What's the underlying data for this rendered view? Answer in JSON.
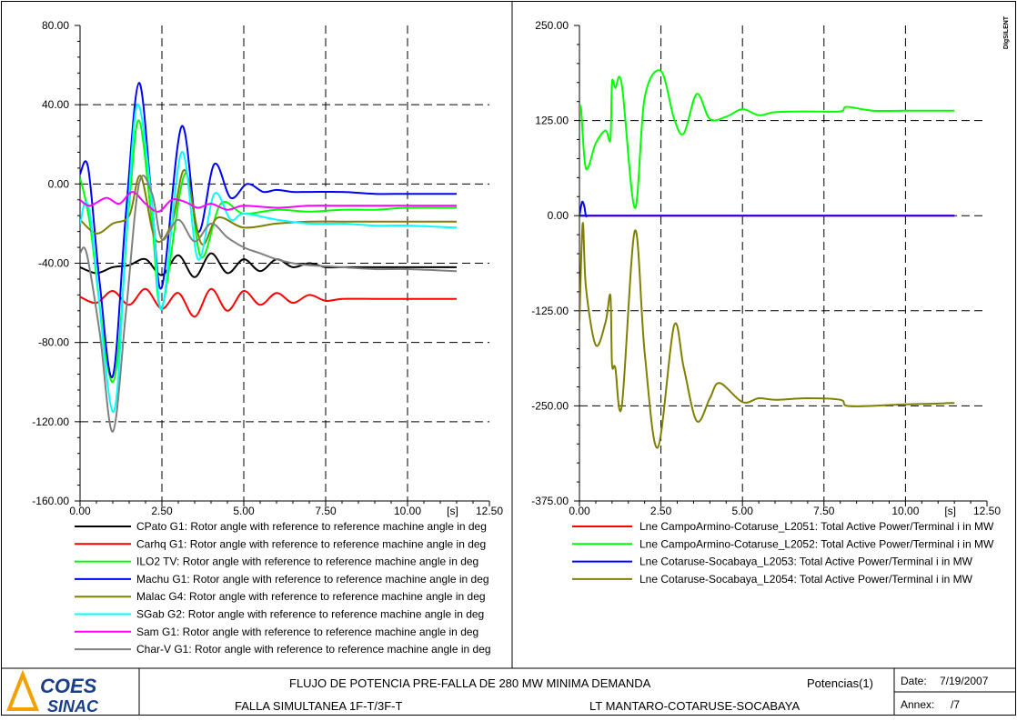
{
  "brand": {
    "top": "COES",
    "bottom": "SINAC",
    "color_top": "#1a3f8a",
    "color_bottom": "#1a3f8a",
    "triangle_color": "#f2a100"
  },
  "watermark": "DIgSILENT",
  "footer": {
    "title1": "FLUJO DE POTENCIA PRE-FALLA DE 280 MW MINIMA DEMANDA",
    "title2": "FALLA SIMULTANEA 1F-T/3F-T",
    "subtitle2": "LT MANTARO-COTARUSE-SOCABAYA",
    "page": "Potencias(1)",
    "date_label": "Date:",
    "date": "7/19/2007",
    "annex_label": "Annex:",
    "annex": "/7"
  },
  "chart_data": [
    {
      "type": "line",
      "x_unit_label": "[s]",
      "xlim": [
        0,
        12.5
      ],
      "ylim": [
        -160,
        80
      ],
      "x_ticks": [
        "0.00",
        "2.50",
        "5.00",
        "7.50",
        "10.00",
        "12.50"
      ],
      "y_ticks": [
        "80.00",
        "40.00",
        "0.00",
        "-40.00",
        "-80.00",
        "-120.00",
        "-160.00"
      ],
      "grid": true,
      "legend_position": "bottom",
      "series": [
        {
          "name": "CPato G1: Rotor angle with reference to reference machine angle in deg",
          "color": "#000000",
          "x": [
            0,
            0.5,
            1.0,
            1.5,
            2.0,
            2.5,
            3.0,
            3.5,
            4.0,
            4.5,
            5.0,
            5.5,
            6.0,
            6.5,
            7.0,
            7.5,
            8.0,
            9.0,
            10.0,
            11.0,
            11.5
          ],
          "y": [
            -42,
            -45,
            -42,
            -41,
            -38,
            -46,
            -36,
            -47,
            -35,
            -45,
            -38,
            -44,
            -38,
            -42,
            -40,
            -42,
            -42,
            -42,
            -42,
            -42,
            -42
          ]
        },
        {
          "name": "Carhq G1: Rotor angle with reference to reference machine angle in deg",
          "color": "#ff0000",
          "x": [
            0,
            0.5,
            1.0,
            1.5,
            2.0,
            2.5,
            3.0,
            3.5,
            4.0,
            4.5,
            5.0,
            5.5,
            6.0,
            6.5,
            7.0,
            7.5,
            8.0,
            9.0,
            10.0,
            11.0,
            11.5
          ],
          "y": [
            -57,
            -60,
            -54,
            -61,
            -53,
            -63,
            -55,
            -67,
            -53,
            -64,
            -54,
            -61,
            -55,
            -60,
            -56,
            -59,
            -58,
            -58,
            -58,
            -58,
            -58
          ]
        },
        {
          "name": "ILO2 TV: Rotor angle with reference to reference machine angle in deg",
          "color": "#00ff00",
          "x": [
            0,
            0.3,
            1.0,
            1.5,
            1.8,
            2.2,
            2.5,
            3.2,
            3.7,
            4.3,
            5.0,
            6.0,
            7.0,
            8.0,
            9.0,
            10.0,
            11.5
          ],
          "y": [
            3,
            -20,
            -100,
            -10,
            32,
            -20,
            -62,
            5,
            -37,
            -10,
            -15,
            -13,
            -14,
            -13,
            -13,
            -12,
            -12
          ]
        },
        {
          "name": "Machu G1: Rotor angle with reference to reference machine angle in deg",
          "color": "#0000ff",
          "x": [
            0,
            0.25,
            0.6,
            1.0,
            1.4,
            1.8,
            2.2,
            2.5,
            3.1,
            3.6,
            4.1,
            4.6,
            5.1,
            5.6,
            6.0,
            6.5,
            7.0,
            8.0,
            9.0,
            10.0,
            11.5
          ],
          "y": [
            5,
            8,
            -50,
            -97,
            -15,
            51,
            -10,
            -52,
            29,
            -24,
            10,
            -7,
            0,
            -4,
            -3,
            -4,
            -4,
            -4,
            -5,
            -5,
            -5
          ]
        },
        {
          "name": "Malac G4: Rotor angle with reference to reference machine angle in deg",
          "color": "#808000",
          "x": [
            0,
            0.5,
            1.0,
            1.5,
            1.85,
            2.3,
            2.8,
            3.2,
            3.7,
            4.2,
            5.0,
            6.0,
            7.0,
            8.0,
            9.0,
            10.0,
            11.5
          ],
          "y": [
            -18,
            -25,
            -20,
            -16,
            4,
            -28,
            -20,
            7,
            -30,
            -17,
            -22,
            -20,
            -19,
            -19,
            -19,
            -19,
            -19
          ]
        },
        {
          "name": "SGab G2: Rotor angle with reference to reference machine angle in deg",
          "color": "#00ffff",
          "x": [
            0,
            0.3,
            1.0,
            1.4,
            1.75,
            2.2,
            2.5,
            3.1,
            3.6,
            4.1,
            4.6,
            5.0,
            6.0,
            7.0,
            8.0,
            9.0,
            10.0,
            11.5
          ],
          "y": [
            -20,
            -15,
            -115,
            -30,
            40,
            -10,
            -63,
            16,
            -38,
            -5,
            -18,
            -15,
            -18,
            -20,
            -20,
            -21,
            -21,
            -22
          ]
        },
        {
          "name": "Sam G1: Rotor angle with reference to reference machine angle in deg",
          "color": "#ff00ff",
          "x": [
            0,
            0.3,
            0.8,
            1.2,
            1.6,
            2.0,
            2.4,
            2.8,
            3.2,
            3.6,
            4.0,
            4.5,
            5.0,
            6.0,
            7.0,
            8.0,
            9.0,
            10.0,
            11.5
          ],
          "y": [
            -8,
            -11,
            -7,
            -10,
            -4,
            -10,
            -14,
            -8,
            -9,
            -12,
            -10,
            -13,
            -11,
            -12,
            -11,
            -11,
            -11,
            -11,
            -11
          ]
        },
        {
          "name": "Char-V G1: Rotor angle with reference to reference machine angle in deg",
          "color": "#808080",
          "x": [
            0,
            0.2,
            0.6,
            1.0,
            1.4,
            1.8,
            2.2,
            2.5,
            3.0,
            3.5,
            4.0,
            4.5,
            5.0,
            5.5,
            6.0,
            6.5,
            7.0,
            8.0,
            9.0,
            10.0,
            11.5
          ],
          "y": [
            -35,
            -35,
            -75,
            -125,
            -65,
            0,
            -5,
            -28,
            -18,
            -29,
            -20,
            -27,
            -32,
            -35,
            -38,
            -40,
            -41,
            -42,
            -43,
            -43,
            -44
          ]
        }
      ]
    },
    {
      "type": "line",
      "x_unit_label": "[s]",
      "xlim": [
        0,
        12.5
      ],
      "ylim": [
        -375,
        250
      ],
      "x_ticks": [
        "0.00",
        "2.50",
        "5.00",
        "7.50",
        "10.00",
        "12.50"
      ],
      "y_ticks": [
        "250.00",
        "125.00",
        "0.00",
        "-125.00",
        "-250.00",
        "-375.00"
      ],
      "grid": true,
      "legend_position": "bottom",
      "series": [
        {
          "name": "Lne CampoArmino-Cotaruse_L2051: Total Active Power/Terminal i in MW",
          "color": "#ff0000",
          "x": [
            0,
            11.5
          ],
          "y": [
            0,
            0
          ]
        },
        {
          "name": "Lne CampoArmino-Cotaruse_L2052: Total Active Power/Terminal i in MW",
          "color": "#00ff00",
          "x": [
            0,
            0.05,
            0.2,
            0.5,
            0.8,
            0.95,
            1.0,
            1.1,
            1.3,
            1.7,
            2.0,
            2.5,
            2.9,
            3.2,
            3.6,
            4.0,
            4.5,
            5.0,
            5.5,
            6.0,
            7.0,
            8.0,
            8.2,
            9.0,
            10.0,
            11.0,
            11.5
          ],
          "y": [
            135,
            140,
            62,
            95,
            112,
            100,
            175,
            168,
            172,
            10,
            155,
            190,
            128,
            108,
            160,
            127,
            130,
            140,
            132,
            136,
            137,
            137,
            143,
            138,
            138,
            138,
            138
          ]
        },
        {
          "name": "Lne Cotaruse-Socabaya_L2053: Total Active Power/Terminal i in MW",
          "color": "#0000ff",
          "x": [
            0,
            0.08,
            0.15,
            0.2,
            0.3,
            1.0,
            11.5
          ],
          "y": [
            0,
            18,
            12,
            0,
            0,
            0,
            0
          ]
        },
        {
          "name": "Lne Cotaruse-Socabaya_L2054: Total Active Power/Terminal i in MW",
          "color": "#808000",
          "x": [
            0,
            0.1,
            0.2,
            0.5,
            0.8,
            0.95,
            1.0,
            1.1,
            1.3,
            1.7,
            2.0,
            2.4,
            2.9,
            3.2,
            3.6,
            4.0,
            4.3,
            5.0,
            5.5,
            6.0,
            7.0,
            8.0,
            8.2,
            9.0,
            10.0,
            11.0,
            11.5
          ],
          "y": [
            -140,
            -10,
            -95,
            -170,
            -140,
            -105,
            -195,
            -200,
            -250,
            -20,
            -180,
            -305,
            -145,
            -200,
            -270,
            -240,
            -220,
            -245,
            -240,
            -242,
            -240,
            -242,
            -250,
            -250,
            -248,
            -247,
            -246
          ]
        }
      ]
    }
  ]
}
